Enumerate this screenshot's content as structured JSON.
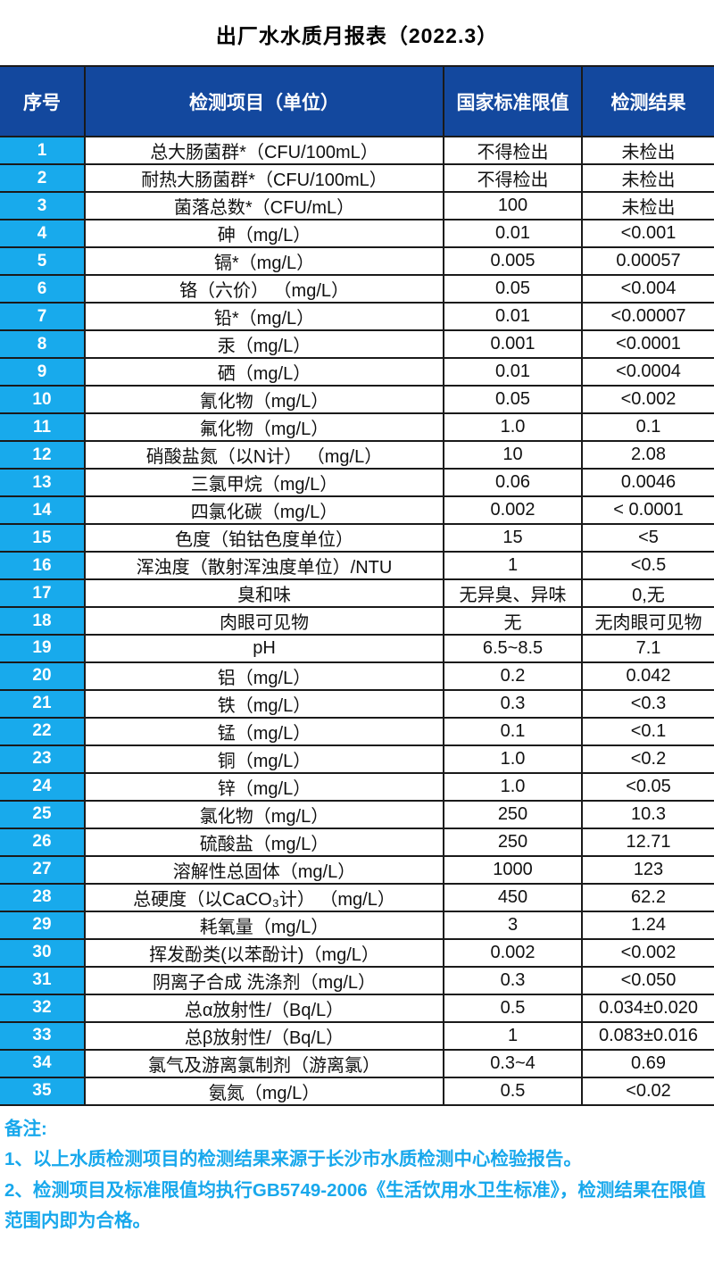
{
  "title": "出厂水水质月报表（2022.3）",
  "table": {
    "headers": [
      "序号",
      "检测项目（单位）",
      "国家标准限值",
      "检测结果"
    ],
    "rows": [
      {
        "no": "1",
        "item": "总大肠菌群*（CFU/100mL）",
        "limit": "不得检出",
        "result": "未检出"
      },
      {
        "no": "2",
        "item": "耐热大肠菌群*（CFU/100mL）",
        "limit": "不得检出",
        "result": "未检出"
      },
      {
        "no": "3",
        "item": "菌落总数*（CFU/mL）",
        "limit": "100",
        "result": "未检出"
      },
      {
        "no": "4",
        "item": "砷（mg/L）",
        "limit": "0.01",
        "result": "<0.001"
      },
      {
        "no": "5",
        "item": "镉*（mg/L）",
        "limit": "0.005",
        "result": "0.00057"
      },
      {
        "no": "6",
        "item": "铬（六价） （mg/L）",
        "limit": "0.05",
        "result": "<0.004"
      },
      {
        "no": "7",
        "item": "铅*（mg/L）",
        "limit": "0.01",
        "result": "<0.00007"
      },
      {
        "no": "8",
        "item": "汞（mg/L）",
        "limit": "0.001",
        "result": "<0.0001"
      },
      {
        "no": "9",
        "item": "硒（mg/L）",
        "limit": "0.01",
        "result": "<0.0004"
      },
      {
        "no": "10",
        "item": "氰化物（mg/L）",
        "limit": "0.05",
        "result": "<0.002"
      },
      {
        "no": "11",
        "item": "氟化物（mg/L）",
        "limit": "1.0",
        "result": "0.1"
      },
      {
        "no": "12",
        "item": "硝酸盐氮（以N计） （mg/L）",
        "limit": "10",
        "result": "2.08"
      },
      {
        "no": "13",
        "item": "三氯甲烷（mg/L）",
        "limit": "0.06",
        "result": "0.0046"
      },
      {
        "no": "14",
        "item": "四氯化碳（mg/L）",
        "limit": "0.002",
        "result": "< 0.0001"
      },
      {
        "no": "15",
        "item": "色度（铂钴色度单位）",
        "limit": "15",
        "result": "<5"
      },
      {
        "no": "16",
        "item": "浑浊度（散射浑浊度单位）/NTU",
        "limit": "1",
        "result": "<0.5"
      },
      {
        "no": "17",
        "item": "臭和味",
        "limit": "无异臭、异味",
        "result": "0,无"
      },
      {
        "no": "18",
        "item": "肉眼可见物",
        "limit": "无",
        "result": "无肉眼可见物"
      },
      {
        "no": "19",
        "item": "pH",
        "limit": "6.5~8.5",
        "result": "7.1"
      },
      {
        "no": "20",
        "item": "铝（mg/L）",
        "limit": "0.2",
        "result": "0.042"
      },
      {
        "no": "21",
        "item": "铁（mg/L）",
        "limit": "0.3",
        "result": "<0.3"
      },
      {
        "no": "22",
        "item": "锰（mg/L）",
        "limit": "0.1",
        "result": "<0.1"
      },
      {
        "no": "23",
        "item": "铜（mg/L）",
        "limit": "1.0",
        "result": "<0.2"
      },
      {
        "no": "24",
        "item": "锌（mg/L）",
        "limit": "1.0",
        "result": "<0.05"
      },
      {
        "no": "25",
        "item": "氯化物（mg/L）",
        "limit": "250",
        "result": "10.3"
      },
      {
        "no": "26",
        "item": "硫酸盐（mg/L）",
        "limit": "250",
        "result": "12.71"
      },
      {
        "no": "27",
        "item": "溶解性总固体（mg/L）",
        "limit": "1000",
        "result": "123"
      },
      {
        "no": "28",
        "item": "总硬度（以CaCO₃计） （mg/L）",
        "limit": "450",
        "result": "62.2"
      },
      {
        "no": "29",
        "item": "耗氧量（mg/L）",
        "limit": "3",
        "result": "1.24"
      },
      {
        "no": "30",
        "item": "挥发酚类(以苯酚计)（mg/L）",
        "limit": "0.002",
        "result": "<0.002"
      },
      {
        "no": "31",
        "item": "阴离子合成 洗涤剂（mg/L）",
        "limit": "0.3",
        "result": "<0.050"
      },
      {
        "no": "32",
        "item": "总α放射性/（Bq/L）",
        "limit": "0.5",
        "result": "0.034±0.020"
      },
      {
        "no": "33",
        "item": "总β放射性/（Bq/L）",
        "limit": "1",
        "result": "0.083±0.016"
      },
      {
        "no": "34",
        "item": "氯气及游离氯制剂（游离氯）",
        "limit": "0.3~4",
        "result": "0.69"
      },
      {
        "no": "35",
        "item": "氨氮（mg/L）",
        "limit": "0.5",
        "result": "<0.02"
      }
    ]
  },
  "notes": {
    "label": "备注:",
    "items": [
      "1、以上水质检测项目的检测结果来源于长沙市水质检测中心检验报告。",
      "2、检测项目及标准限值均执行GB5749-2006《生活饮用水卫生标准》，检测结果在限值范围内即为合格。"
    ]
  },
  "colors": {
    "header_bg": "#13489E",
    "index_bg": "#18AAEC",
    "notes_text": "#18A8EC",
    "grid_border": "#1a1a1a"
  }
}
